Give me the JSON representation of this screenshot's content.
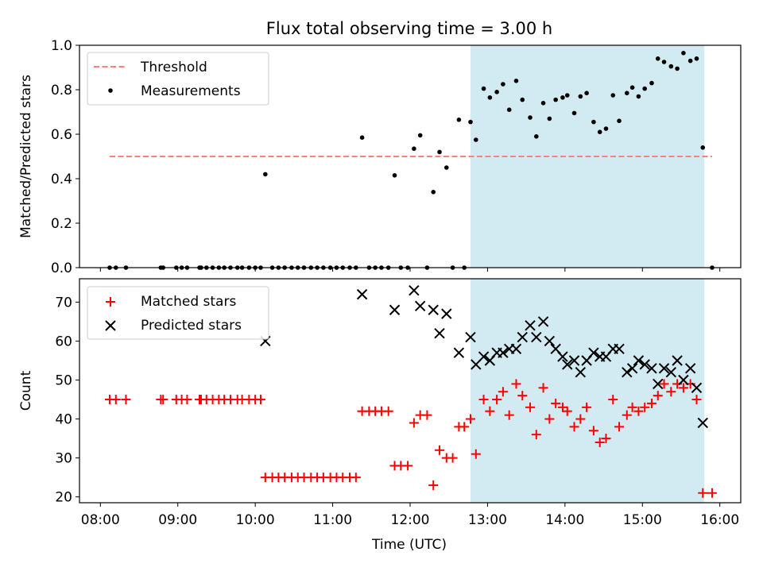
{
  "chart_data": {
    "title": "Flux total observing time = 3.00 h",
    "x_axis": {
      "label": "Time (UTC)",
      "ticks": [
        "08:00",
        "09:00",
        "10:00",
        "11:00",
        "12:00",
        "13:00",
        "14:00",
        "15:00",
        "16:00"
      ],
      "range_hours": [
        7.73,
        16.27
      ]
    },
    "shaded_window": {
      "start": 12.78,
      "end": 15.8,
      "color": "#add8e6"
    },
    "panels": [
      {
        "type": "scatter",
        "ylabel": "Matched/Predicted stars",
        "ylim": [
          0.0,
          1.0
        ],
        "yticks": [
          "0.0",
          "0.2",
          "0.4",
          "0.6",
          "0.8",
          "1.0"
        ],
        "threshold": {
          "name": "Threshold",
          "value": 0.5,
          "x_range": [
            8.12,
            15.9
          ],
          "color": "#ff7f7f"
        },
        "series": [
          {
            "name": "Measurements",
            "color": "#000000",
            "marker": "dot",
            "points": [
              [
                8.12,
                0
              ],
              [
                8.2,
                0
              ],
              [
                8.33,
                0
              ],
              [
                8.78,
                0
              ],
              [
                8.81,
                0
              ],
              [
                8.98,
                0
              ],
              [
                9.05,
                0
              ],
              [
                9.12,
                0
              ],
              [
                9.28,
                0
              ],
              [
                9.3,
                0
              ],
              [
                9.37,
                0
              ],
              [
                9.45,
                0
              ],
              [
                9.53,
                0
              ],
              [
                9.6,
                0
              ],
              [
                9.68,
                0
              ],
              [
                9.77,
                0
              ],
              [
                9.83,
                0
              ],
              [
                9.92,
                0
              ],
              [
                10.0,
                0
              ],
              [
                10.07,
                0
              ],
              [
                10.13,
                0.42
              ],
              [
                10.22,
                0
              ],
              [
                10.3,
                0
              ],
              [
                10.38,
                0
              ],
              [
                10.47,
                0
              ],
              [
                10.55,
                0
              ],
              [
                10.63,
                0
              ],
              [
                10.72,
                0
              ],
              [
                10.8,
                0
              ],
              [
                10.88,
                0
              ],
              [
                10.97,
                0
              ],
              [
                11.05,
                0
              ],
              [
                11.13,
                0
              ],
              [
                11.22,
                0
              ],
              [
                11.3,
                0
              ],
              [
                11.38,
                0.585
              ],
              [
                11.47,
                0
              ],
              [
                11.55,
                0
              ],
              [
                11.63,
                0
              ],
              [
                11.72,
                0
              ],
              [
                11.8,
                0.415
              ],
              [
                11.88,
                0
              ],
              [
                11.97,
                0
              ],
              [
                12.05,
                0.535
              ],
              [
                12.13,
                0.595
              ],
              [
                12.22,
                0
              ],
              [
                12.3,
                0.34
              ],
              [
                12.38,
                0.52
              ],
              [
                12.47,
                0.45
              ],
              [
                12.55,
                0
              ],
              [
                12.63,
                0.665
              ],
              [
                12.7,
                0
              ],
              [
                12.78,
                0.655
              ],
              [
                12.85,
                0.575
              ],
              [
                12.95,
                0.805
              ],
              [
                13.03,
                0.765
              ],
              [
                13.12,
                0.79
              ],
              [
                13.2,
                0.825
              ],
              [
                13.28,
                0.71
              ],
              [
                13.37,
                0.84
              ],
              [
                13.45,
                0.755
              ],
              [
                13.55,
                0.675
              ],
              [
                13.63,
                0.59
              ],
              [
                13.72,
                0.74
              ],
              [
                13.8,
                0.67
              ],
              [
                13.88,
                0.755
              ],
              [
                13.97,
                0.765
              ],
              [
                14.03,
                0.775
              ],
              [
                14.12,
                0.695
              ],
              [
                14.2,
                0.77
              ],
              [
                14.28,
                0.785
              ],
              [
                14.37,
                0.655
              ],
              [
                14.45,
                0.61
              ],
              [
                14.53,
                0.625
              ],
              [
                14.62,
                0.775
              ],
              [
                14.7,
                0.66
              ],
              [
                14.8,
                0.785
              ],
              [
                14.87,
                0.81
              ],
              [
                14.95,
                0.77
              ],
              [
                15.03,
                0.805
              ],
              [
                15.12,
                0.83
              ],
              [
                15.2,
                0.94
              ],
              [
                15.28,
                0.925
              ],
              [
                15.37,
                0.905
              ],
              [
                15.45,
                0.895
              ],
              [
                15.53,
                0.965
              ],
              [
                15.62,
                0.93
              ],
              [
                15.7,
                0.94
              ],
              [
                15.78,
                0.54
              ],
              [
                15.9,
                0
              ]
            ]
          }
        ],
        "legend": {
          "position": "top-left",
          "entries": [
            "Threshold",
            "Measurements"
          ]
        }
      },
      {
        "type": "scatter",
        "ylabel": "Count",
        "ylim": [
          18.5,
          76
        ],
        "yticks": [
          "20",
          "30",
          "40",
          "50",
          "60",
          "70"
        ],
        "series": [
          {
            "name": "Matched stars",
            "color": "#ff0000",
            "marker": "plus",
            "points": [
              [
                8.12,
                45
              ],
              [
                8.2,
                45
              ],
              [
                8.33,
                45
              ],
              [
                8.78,
                45
              ],
              [
                8.81,
                45
              ],
              [
                8.98,
                45
              ],
              [
                9.05,
                45
              ],
              [
                9.12,
                45
              ],
              [
                9.28,
                45
              ],
              [
                9.3,
                45
              ],
              [
                9.37,
                45
              ],
              [
                9.45,
                45
              ],
              [
                9.53,
                45
              ],
              [
                9.6,
                45
              ],
              [
                9.68,
                45
              ],
              [
                9.77,
                45
              ],
              [
                9.83,
                45
              ],
              [
                9.92,
                45
              ],
              [
                10.0,
                45
              ],
              [
                10.07,
                45
              ],
              [
                10.13,
                25
              ],
              [
                10.22,
                25
              ],
              [
                10.3,
                25
              ],
              [
                10.38,
                25
              ],
              [
                10.47,
                25
              ],
              [
                10.55,
                25
              ],
              [
                10.63,
                25
              ],
              [
                10.72,
                25
              ],
              [
                10.8,
                25
              ],
              [
                10.88,
                25
              ],
              [
                10.97,
                25
              ],
              [
                11.05,
                25
              ],
              [
                11.13,
                25
              ],
              [
                11.22,
                25
              ],
              [
                11.3,
                25
              ],
              [
                11.38,
                42
              ],
              [
                11.47,
                42
              ],
              [
                11.55,
                42
              ],
              [
                11.63,
                42
              ],
              [
                11.72,
                42
              ],
              [
                11.8,
                28
              ],
              [
                11.88,
                28
              ],
              [
                11.97,
                28
              ],
              [
                12.05,
                39
              ],
              [
                12.13,
                41
              ],
              [
                12.22,
                41
              ],
              [
                12.3,
                23
              ],
              [
                12.38,
                32
              ],
              [
                12.47,
                30
              ],
              [
                12.55,
                30
              ],
              [
                12.63,
                38
              ],
              [
                12.7,
                38
              ],
              [
                12.78,
                40
              ],
              [
                12.85,
                31
              ],
              [
                12.95,
                45
              ],
              [
                13.03,
                42
              ],
              [
                13.12,
                45
              ],
              [
                13.2,
                47
              ],
              [
                13.28,
                41
              ],
              [
                13.37,
                49
              ],
              [
                13.45,
                46
              ],
              [
                13.55,
                43
              ],
              [
                13.63,
                36
              ],
              [
                13.72,
                48
              ],
              [
                13.8,
                40
              ],
              [
                13.88,
                44
              ],
              [
                13.97,
                43
              ],
              [
                14.03,
                42
              ],
              [
                14.12,
                38
              ],
              [
                14.2,
                40
              ],
              [
                14.28,
                43
              ],
              [
                14.37,
                37
              ],
              [
                14.45,
                34
              ],
              [
                14.53,
                35
              ],
              [
                14.62,
                45
              ],
              [
                14.7,
                38
              ],
              [
                14.8,
                41
              ],
              [
                14.87,
                43
              ],
              [
                14.95,
                42
              ],
              [
                15.03,
                43
              ],
              [
                15.12,
                44
              ],
              [
                15.2,
                46
              ],
              [
                15.28,
                49
              ],
              [
                15.37,
                47
              ],
              [
                15.45,
                49
              ],
              [
                15.53,
                48
              ],
              [
                15.62,
                49
              ],
              [
                15.7,
                45
              ],
              [
                15.78,
                21
              ],
              [
                15.9,
                21
              ]
            ]
          },
          {
            "name": "Predicted stars",
            "color": "#000000",
            "marker": "x",
            "points": [
              [
                10.13,
                60
              ],
              [
                11.38,
                72
              ],
              [
                11.8,
                68
              ],
              [
                12.05,
                73
              ],
              [
                12.13,
                69
              ],
              [
                12.3,
                68
              ],
              [
                12.38,
                62
              ],
              [
                12.47,
                67
              ],
              [
                12.63,
                57
              ],
              [
                12.78,
                61
              ],
              [
                12.85,
                54
              ],
              [
                12.95,
                56
              ],
              [
                13.03,
                55
              ],
              [
                13.12,
                57
              ],
              [
                13.2,
                57
              ],
              [
                13.28,
                58
              ],
              [
                13.37,
                58
              ],
              [
                13.45,
                61
              ],
              [
                13.55,
                64
              ],
              [
                13.63,
                61
              ],
              [
                13.72,
                65
              ],
              [
                13.8,
                60
              ],
              [
                13.88,
                58
              ],
              [
                13.97,
                56
              ],
              [
                14.03,
                54
              ],
              [
                14.12,
                55
              ],
              [
                14.2,
                52
              ],
              [
                14.28,
                55
              ],
              [
                14.37,
                57
              ],
              [
                14.45,
                56
              ],
              [
                14.53,
                56
              ],
              [
                14.62,
                58
              ],
              [
                14.7,
                58
              ],
              [
                14.8,
                52
              ],
              [
                14.87,
                53
              ],
              [
                14.95,
                55
              ],
              [
                15.03,
                54
              ],
              [
                15.12,
                53
              ],
              [
                15.2,
                49
              ],
              [
                15.28,
                53
              ],
              [
                15.37,
                52
              ],
              [
                15.45,
                55
              ],
              [
                15.53,
                50
              ],
              [
                15.62,
                53
              ],
              [
                15.7,
                48
              ],
              [
                15.78,
                39
              ]
            ]
          }
        ],
        "legend": {
          "position": "top-left",
          "entries": [
            "Matched stars",
            "Predicted stars"
          ]
        }
      }
    ]
  }
}
